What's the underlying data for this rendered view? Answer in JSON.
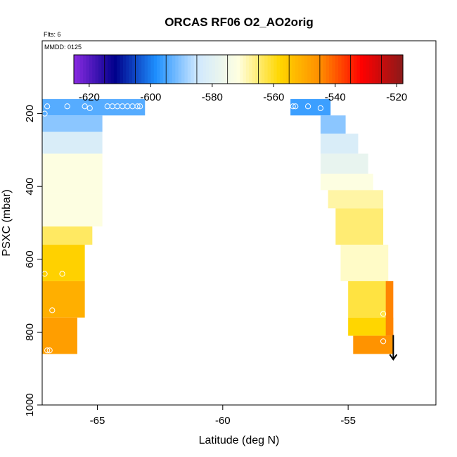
{
  "chart_data": {
    "type": "heatmap",
    "title": "ORCAS RF06 O2_AO2orig",
    "flights_label": "Flts: 6",
    "date_label": "MMDD: 0125",
    "xlabel": "Latitude (deg N)",
    "ylabel": "PSXC (mbar)",
    "xlim": [
      -67.2,
      -51.5
    ],
    "ylim": [
      1000,
      0
    ],
    "xticks": [
      -65,
      -60,
      -55
    ],
    "yticks": [
      200,
      400,
      600,
      800,
      1000
    ],
    "colorbar": {
      "range": [
        -625,
        -518
      ],
      "ticks": [
        -620,
        -600,
        -580,
        -560,
        -540,
        -520
      ],
      "colors": [
        "#8a2be2",
        "#00008b",
        "#1e90ff",
        "#cfe8ff",
        "#ffffe0",
        "#ffd700",
        "#ff8c00",
        "#ff0000",
        "#8b1a1a"
      ]
    },
    "cells": [
      {
        "lat": [
          -67.2,
          -63.1
        ],
        "p": [
          160,
          205
        ],
        "v": -594
      },
      {
        "lat": [
          -67.2,
          -64.8
        ],
        "p": [
          205,
          250
        ],
        "v": -590
      },
      {
        "lat": [
          -67.2,
          -64.8
        ],
        "p": [
          250,
          310
        ],
        "v": -582
      },
      {
        "lat": [
          -67.2,
          -64.8
        ],
        "p": [
          310,
          420
        ],
        "v": -572
      },
      {
        "lat": [
          -67.2,
          -64.8
        ],
        "p": [
          420,
          510
        ],
        "v": -572
      },
      {
        "lat": [
          -67.2,
          -65.2
        ],
        "p": [
          510,
          560
        ],
        "v": -564
      },
      {
        "lat": [
          -67.2,
          -65.5
        ],
        "p": [
          560,
          660
        ],
        "v": -557
      },
      {
        "lat": [
          -67.2,
          -65.5
        ],
        "p": [
          660,
          760
        ],
        "v": -551
      },
      {
        "lat": [
          -67.2,
          -65.8
        ],
        "p": [
          760,
          860
        ],
        "v": -548
      },
      {
        "lat": [
          -57.3,
          -55.7
        ],
        "p": [
          160,
          205
        ],
        "v": -596
      },
      {
        "lat": [
          -56.1,
          -55.1
        ],
        "p": [
          205,
          255
        ],
        "v": -590
      },
      {
        "lat": [
          -56.1,
          -54.6
        ],
        "p": [
          255,
          310
        ],
        "v": -582
      },
      {
        "lat": [
          -56.1,
          -54.2
        ],
        "p": [
          310,
          365
        ],
        "v": -578
      },
      {
        "lat": [
          -56.1,
          -54.0
        ],
        "p": [
          365,
          410
        ],
        "v": -572
      },
      {
        "lat": [
          -55.8,
          -53.6
        ],
        "p": [
          410,
          460
        ],
        "v": -568
      },
      {
        "lat": [
          -55.5,
          -53.6
        ],
        "p": [
          460,
          560
        ],
        "v": -565
      },
      {
        "lat": [
          -55.3,
          -53.4
        ],
        "p": [
          560,
          660
        ],
        "v": -570
      },
      {
        "lat": [
          -55.0,
          -53.4
        ],
        "p": [
          660,
          760
        ],
        "v": -562
      },
      {
        "lat": [
          -55.0,
          -53.2
        ],
        "p": [
          760,
          810
        ],
        "v": -558
      },
      {
        "lat": [
          -53.5,
          -53.2
        ],
        "p": [
          660,
          810
        ],
        "v": -544
      },
      {
        "lat": [
          -54.8,
          -53.2
        ],
        "p": [
          810,
          860
        ],
        "v": -546
      }
    ],
    "points": [
      {
        "lat": -67.1,
        "p": 200
      },
      {
        "lat": -67.0,
        "p": 180
      },
      {
        "lat": -66.2,
        "p": 180
      },
      {
        "lat": -65.5,
        "p": 180
      },
      {
        "lat": -65.3,
        "p": 185
      },
      {
        "lat": -64.6,
        "p": 180
      },
      {
        "lat": -64.4,
        "p": 180
      },
      {
        "lat": -64.2,
        "p": 180
      },
      {
        "lat": -64.0,
        "p": 180
      },
      {
        "lat": -63.8,
        "p": 180
      },
      {
        "lat": -63.6,
        "p": 180
      },
      {
        "lat": -63.4,
        "p": 180
      },
      {
        "lat": -63.3,
        "p": 180
      },
      {
        "lat": -67.1,
        "p": 640
      },
      {
        "lat": -66.4,
        "p": 640
      },
      {
        "lat": -66.8,
        "p": 740
      },
      {
        "lat": -67.0,
        "p": 850
      },
      {
        "lat": -66.9,
        "p": 850
      },
      {
        "lat": -57.2,
        "p": 180
      },
      {
        "lat": -57.1,
        "p": 180
      },
      {
        "lat": -56.6,
        "p": 180
      },
      {
        "lat": -56.1,
        "p": 185
      },
      {
        "lat": -53.6,
        "p": 750
      },
      {
        "lat": -53.6,
        "p": 825
      }
    ],
    "arrow": {
      "lat": -53.2,
      "p_from": 808,
      "p_to": 875
    }
  }
}
